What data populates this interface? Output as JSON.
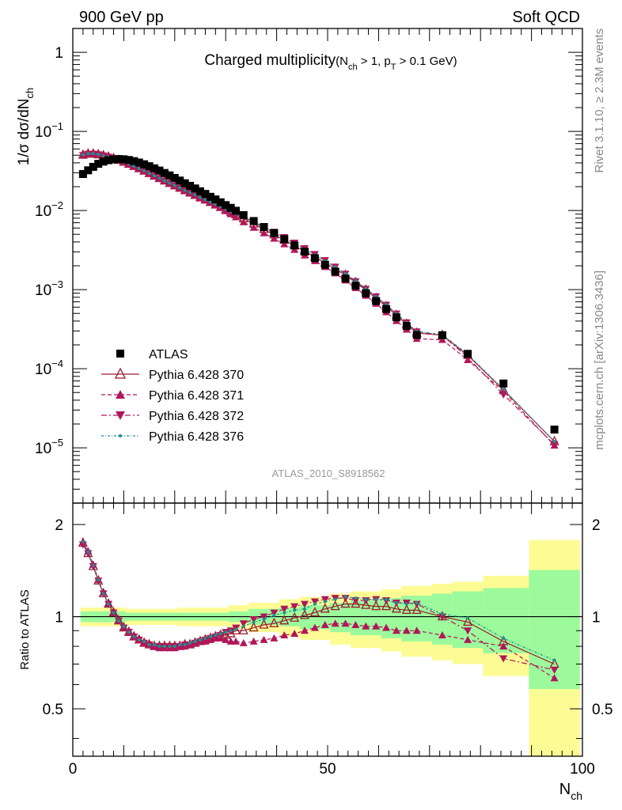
{
  "header": {
    "left": "900 GeV pp",
    "right": "Soft QCD"
  },
  "side_labels": {
    "rivet": "Rivet 3.1.10, ≥ 2.3M events",
    "source": "mcplots.cern.ch [arXiv:1306.3436]"
  },
  "analysis_tag": "ATLAS_2010_S8918562",
  "colors": {
    "atlas": "#000000",
    "p370": "#9b1c2e",
    "p371": "#b0175a",
    "p372": "#b0175a",
    "p376": "#1f8f8f",
    "band_inner": "#9cfa9c",
    "band_outer": "#fdfc94"
  },
  "chart_data": [
    {
      "type": "scatter",
      "title": "Charged multiplicity",
      "title_qual": {
        "p1": "(N",
        "s1": "ch",
        "p2": " > 1, p",
        "s2": "T",
        "p3": " > 0.1 GeV)"
      },
      "ylabel": {
        "p1": "1/σ dσ/dN",
        "s1": "ch"
      },
      "xlim": [
        0,
        100
      ],
      "ylim": [
        2e-06,
        2.0
      ],
      "yscale": "log",
      "yticks": [
        {
          "value": 1,
          "base": "1",
          "exp": ""
        },
        {
          "value": 0.1,
          "base": "10",
          "exp": "−1"
        },
        {
          "value": 0.01,
          "base": "10",
          "exp": "−2"
        },
        {
          "value": 0.001,
          "base": "10",
          "exp": "−3"
        },
        {
          "value": 0.0001,
          "base": "10",
          "exp": "−4"
        },
        {
          "value": 1e-05,
          "base": "10",
          "exp": "−5"
        }
      ],
      "legend_position": "bottom-left",
      "x": [
        2,
        3,
        4,
        5,
        6,
        7,
        8,
        9,
        10,
        11,
        12,
        13,
        14,
        15,
        16,
        17,
        18,
        19,
        20,
        21,
        22,
        23,
        24,
        25,
        26,
        27,
        28,
        29,
        30,
        31,
        32,
        33.5,
        35.5,
        37.5,
        39.5,
        41.5,
        43.5,
        45.5,
        47.5,
        49.5,
        51.5,
        53.5,
        55.5,
        57.5,
        59.5,
        61.5,
        63.5,
        65.5,
        67.5,
        72.5,
        77.5,
        84.5,
        94.5
      ],
      "series": [
        {
          "name": "ATLAS",
          "marker": "square",
          "values": [
            0.0289,
            0.0322,
            0.0356,
            0.0389,
            0.0415,
            0.0432,
            0.0443,
            0.0447,
            0.0444,
            0.0435,
            0.0421,
            0.0404,
            0.0384,
            0.0363,
            0.0341,
            0.032,
            0.0298,
            0.0278,
            0.0258,
            0.0239,
            0.0221,
            0.0205,
            0.019,
            0.0175,
            0.0162,
            0.0149,
            0.0138,
            0.0127,
            0.0117,
            0.0108,
            0.00992,
            0.00874,
            0.00736,
            0.00618,
            0.00518,
            0.00434,
            0.00362,
            0.00302,
            0.0025,
            0.00206,
            0.00169,
            0.00138,
            0.00112,
            0.0009,
            0.000718,
            0.000568,
            0.000446,
            0.000346,
            0.000267,
            0.000265,
            0.000154,
            6.5e-05,
            1.7e-05
          ]
        },
        {
          "name": "Pythia 6.428 370",
          "marker": "triangle-open",
          "line": "solid",
          "values": [
            0.0502,
            0.0519,
            0.0519,
            0.0509,
            0.0494,
            0.0475,
            0.0455,
            0.0433,
            0.041,
            0.0386,
            0.0362,
            0.0339,
            0.0316,
            0.0294,
            0.0274,
            0.0255,
            0.0237,
            0.0221,
            0.0206,
            0.0192,
            0.0179,
            0.0167,
            0.0156,
            0.0145,
            0.0136,
            0.0127,
            0.0118,
            0.011,
            0.0102,
            0.00951,
            0.00888,
            0.00787,
            0.00676,
            0.00578,
            0.00494,
            0.00423,
            0.00359,
            0.00305,
            0.00259,
            0.00218,
            0.00183,
            0.00152,
            0.00123,
            0.000985,
            0.000776,
            0.000611,
            0.000473,
            0.000365,
            0.000282,
            0.000265,
            0.000148,
            5.4e-05,
            1.2e-05
          ]
        },
        {
          "name": "Pythia 6.428 371",
          "marker": "triangle-up",
          "line": "dashed",
          "values": [
            0.0505,
            0.0527,
            0.0526,
            0.0513,
            0.0496,
            0.0476,
            0.0455,
            0.0432,
            0.0409,
            0.0385,
            0.0361,
            0.0338,
            0.0315,
            0.0293,
            0.0273,
            0.0254,
            0.0236,
            0.022,
            0.0205,
            0.0191,
            0.0178,
            0.0166,
            0.0155,
            0.0145,
            0.0135,
            0.0126,
            0.0117,
            0.0108,
            0.00985,
            0.009,
            0.00825,
            0.00713,
            0.00608,
            0.00519,
            0.00442,
            0.00376,
            0.0032,
            0.00271,
            0.0023,
            0.00194,
            0.00161,
            0.00131,
            0.00105,
            0.00084,
            0.000666,
            0.00052,
            0.000402,
            0.000313,
            0.00024,
            0.000232,
            0.000129,
            5.2e-05,
            1.07e-05
          ]
        },
        {
          "name": "Pythia 6.428 372",
          "marker": "triangle-down",
          "line": "dashdot",
          "values": [
            0.0498,
            0.0519,
            0.052,
            0.051,
            0.0494,
            0.0475,
            0.0455,
            0.0433,
            0.041,
            0.0386,
            0.0362,
            0.0339,
            0.0316,
            0.0294,
            0.0274,
            0.0255,
            0.0237,
            0.0221,
            0.0206,
            0.0192,
            0.0179,
            0.0167,
            0.0156,
            0.0146,
            0.0136,
            0.0127,
            0.0119,
            0.0111,
            0.0104,
            0.00977,
            0.00912,
            0.00831,
            0.00719,
            0.0062,
            0.00535,
            0.00458,
            0.0039,
            0.00332,
            0.0028,
            0.00234,
            0.00194,
            0.00158,
            0.00127,
            0.00102,
            0.000818,
            0.000639,
            0.000495,
            0.000383,
            0.000294,
            0.000265,
            0.000139,
            4.7e-05,
            1.1e-05
          ]
        },
        {
          "name": "Pythia 6.428 376",
          "marker": "dot",
          "line": "dashdot-dense",
          "values": [
            0.0508,
            0.0525,
            0.0524,
            0.0513,
            0.0495,
            0.0476,
            0.0456,
            0.0434,
            0.0411,
            0.0387,
            0.0363,
            0.034,
            0.0317,
            0.0295,
            0.0275,
            0.0256,
            0.0238,
            0.0222,
            0.0207,
            0.0193,
            0.018,
            0.0168,
            0.0157,
            0.0146,
            0.0137,
            0.0128,
            0.012,
            0.0112,
            0.0104,
            0.0097,
            0.00905,
            0.00815,
            0.00704,
            0.00606,
            0.00521,
            0.00445,
            0.00381,
            0.00321,
            0.00274,
            0.00231,
            0.00193,
            0.0016,
            0.00129,
            0.00103,
            0.000815,
            0.000645,
            0.000496,
            0.000382,
            0.000296,
            0.000271,
            0.000152,
            5.5e-05,
            1.2e-05
          ]
        }
      ]
    },
    {
      "type": "scatter",
      "ylabel": "Ratio to ATLAS",
      "xlabel": {
        "p1": "N",
        "s1": "ch"
      },
      "xlim": [
        0,
        100
      ],
      "ylim": [
        0.35,
        2.35
      ],
      "yscale": "log",
      "xticks": [
        0,
        50,
        100
      ],
      "yticks": [
        {
          "value": 0.5,
          "label": "0.5"
        },
        {
          "value": 1,
          "label": "1"
        },
        {
          "value": 2,
          "label": "2"
        }
      ],
      "band_x_edges": [
        1.5,
        10.5,
        20.5,
        30.5,
        34.5,
        40.5,
        44.5,
        50.5,
        54.5,
        60.5,
        64.5,
        70.5,
        74.5,
        80.5,
        89.5,
        99.5
      ],
      "band_inner": [
        0.04,
        0.03,
        0.03,
        0.04,
        0.06,
        0.07,
        0.09,
        0.11,
        0.13,
        0.15,
        0.17,
        0.19,
        0.21,
        0.24,
        0.42
      ],
      "band_outer": [
        0.07,
        0.06,
        0.07,
        0.09,
        0.11,
        0.14,
        0.16,
        0.19,
        0.21,
        0.23,
        0.26,
        0.28,
        0.3,
        0.36,
        0.78
      ],
      "x": [
        2,
        3,
        4,
        5,
        6,
        7,
        8,
        9,
        10,
        11,
        12,
        13,
        14,
        15,
        16,
        17,
        18,
        19,
        20,
        21,
        22,
        23,
        24,
        25,
        26,
        27,
        28,
        29,
        30,
        31,
        32,
        33.5,
        35.5,
        37.5,
        39.5,
        41.5,
        43.5,
        45.5,
        47.5,
        49.5,
        51.5,
        53.5,
        55.5,
        57.5,
        59.5,
        61.5,
        63.5,
        65.5,
        67.5,
        72.5,
        77.5,
        84.5,
        94.5
      ],
      "series": [
        {
          "name": "Pythia 6.428 370",
          "values": [
            1.74,
            1.61,
            1.46,
            1.31,
            1.19,
            1.1,
            1.03,
            0.97,
            0.92,
            0.89,
            0.86,
            0.84,
            0.82,
            0.81,
            0.8,
            0.8,
            0.8,
            0.8,
            0.8,
            0.8,
            0.81,
            0.81,
            0.82,
            0.83,
            0.84,
            0.85,
            0.86,
            0.87,
            0.87,
            0.88,
            0.9,
            0.9,
            0.92,
            0.94,
            0.95,
            0.97,
            0.99,
            1.01,
            1.03,
            1.06,
            1.08,
            1.1,
            1.1,
            1.09,
            1.08,
            1.08,
            1.06,
            1.05,
            1.05,
            1.0,
            0.96,
            0.83,
            0.7
          ]
        },
        {
          "name": "Pythia 6.428 371",
          "values": [
            1.75,
            1.64,
            1.48,
            1.32,
            1.2,
            1.1,
            1.03,
            0.97,
            0.92,
            0.89,
            0.86,
            0.84,
            0.82,
            0.81,
            0.8,
            0.79,
            0.79,
            0.79,
            0.79,
            0.8,
            0.8,
            0.81,
            0.82,
            0.83,
            0.83,
            0.84,
            0.85,
            0.85,
            0.84,
            0.83,
            0.83,
            0.82,
            0.83,
            0.84,
            0.85,
            0.87,
            0.88,
            0.9,
            0.92,
            0.94,
            0.95,
            0.95,
            0.94,
            0.93,
            0.93,
            0.92,
            0.9,
            0.9,
            0.9,
            0.87,
            0.84,
            0.8,
            0.63
          ]
        },
        {
          "name": "Pythia 6.428 372",
          "values": [
            1.72,
            1.61,
            1.46,
            1.31,
            1.19,
            1.1,
            1.03,
            0.97,
            0.92,
            0.89,
            0.86,
            0.84,
            0.82,
            0.81,
            0.8,
            0.8,
            0.8,
            0.8,
            0.8,
            0.8,
            0.81,
            0.81,
            0.82,
            0.83,
            0.84,
            0.85,
            0.86,
            0.87,
            0.89,
            0.9,
            0.92,
            0.95,
            0.98,
            1.0,
            1.03,
            1.06,
            1.08,
            1.1,
            1.12,
            1.14,
            1.15,
            1.15,
            1.13,
            1.13,
            1.14,
            1.13,
            1.11,
            1.11,
            1.1,
            1.0,
            0.9,
            0.73,
            0.67
          ]
        },
        {
          "name": "Pythia 6.428 376",
          "values": [
            1.76,
            1.63,
            1.47,
            1.32,
            1.19,
            1.1,
            1.03,
            0.97,
            0.93,
            0.89,
            0.86,
            0.84,
            0.83,
            0.81,
            0.81,
            0.8,
            0.8,
            0.8,
            0.8,
            0.81,
            0.81,
            0.82,
            0.83,
            0.84,
            0.85,
            0.86,
            0.87,
            0.88,
            0.89,
            0.9,
            0.91,
            0.93,
            0.96,
            0.98,
            1.01,
            1.03,
            1.05,
            1.06,
            1.1,
            1.12,
            1.14,
            1.16,
            1.15,
            1.14,
            1.14,
            1.14,
            1.11,
            1.1,
            1.11,
            1.02,
            0.99,
            0.85,
            0.72
          ]
        }
      ]
    }
  ]
}
